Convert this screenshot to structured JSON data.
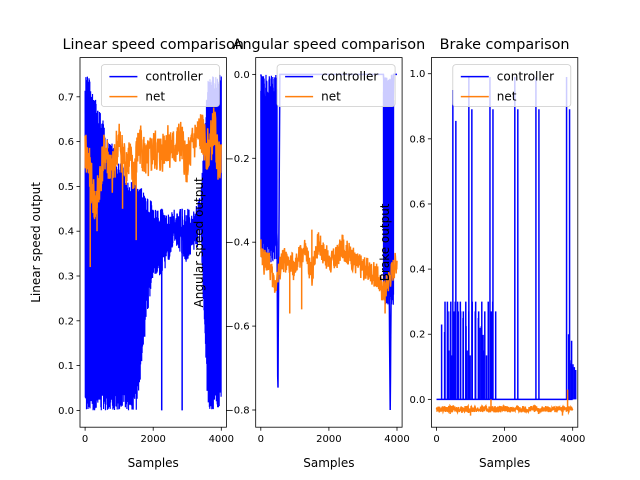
{
  "chart_data": [
    {
      "type": "line",
      "title": "Linear speed comparison",
      "xlabel": "Samples",
      "ylabel": "Linear speed output",
      "xlim": [
        -150,
        4150
      ],
      "ylim": [
        -0.0375,
        0.7875
      ],
      "xticks": [
        0,
        2000,
        4000
      ],
      "yticks": [
        0.0,
        0.1,
        0.2,
        0.3,
        0.4,
        0.5,
        0.6,
        0.7
      ],
      "ytick_labels": [
        "0.0",
        "0.1",
        "0.2",
        "0.3",
        "0.4",
        "0.5",
        "0.6",
        "0.7"
      ],
      "legend": "top-right",
      "series": [
        {
          "name": "controller",
          "color": "#0000ff",
          "x": [
            0,
            100,
            200,
            300,
            400,
            500,
            600,
            700,
            800,
            900,
            1000,
            1100,
            1200,
            1300,
            1400,
            1500,
            1600,
            1700,
            1800,
            1900,
            2000,
            2200,
            2400,
            2600,
            2800,
            3000,
            3200,
            3400,
            3600,
            3700,
            3800,
            3900,
            4000
          ],
          "low": [
            0.0,
            0.0,
            0.0,
            0.0,
            0.0,
            0.0,
            0.0,
            0.0,
            0.0,
            0.0,
            0.0,
            0.0,
            0.0,
            0.0,
            0.0,
            0.0,
            0.05,
            0.12,
            0.2,
            0.25,
            0.3,
            0.3,
            0.32,
            0.35,
            0.35,
            0.32,
            0.35,
            0.38,
            0.0,
            0.0,
            0.0,
            0.0,
            0.0
          ],
          "high": [
            0.75,
            0.75,
            0.72,
            0.7,
            0.68,
            0.66,
            0.62,
            0.6,
            0.6,
            0.58,
            0.56,
            0.55,
            0.52,
            0.52,
            0.52,
            0.5,
            0.5,
            0.5,
            0.48,
            0.48,
            0.45,
            0.45,
            0.45,
            0.45,
            0.45,
            0.45,
            0.45,
            0.48,
            0.75,
            0.75,
            0.75,
            0.75,
            0.75
          ],
          "spikes": [
            {
              "x": 2250,
              "y": 0.0
            },
            {
              "x": 2850,
              "y": 0.0
            }
          ]
        },
        {
          "name": "net",
          "color": "#ff7f0e",
          "x": [
            0,
            100,
            200,
            300,
            400,
            500,
            600,
            700,
            800,
            900,
            1000,
            1100,
            1200,
            1300,
            1400,
            1500,
            1600,
            1700,
            1800,
            1900,
            2000,
            2200,
            2400,
            2600,
            2800,
            3000,
            3200,
            3400,
            3600,
            3700,
            3800,
            3900,
            4000
          ],
          "y": [
            0.58,
            0.55,
            0.5,
            0.45,
            0.5,
            0.55,
            0.58,
            0.55,
            0.52,
            0.58,
            0.6,
            0.57,
            0.55,
            0.57,
            0.52,
            0.56,
            0.6,
            0.58,
            0.55,
            0.56,
            0.58,
            0.57,
            0.6,
            0.58,
            0.6,
            0.55,
            0.6,
            0.62,
            0.58,
            0.6,
            0.64,
            0.55,
            0.58
          ],
          "amp": 0.05,
          "dips": [
            {
              "x": 150,
              "y": 0.32
            },
            {
              "x": 350,
              "y": 0.4
            },
            {
              "x": 1500,
              "y": 0.38
            },
            {
              "x": 1100,
              "y": 0.45
            }
          ]
        }
      ]
    },
    {
      "type": "line",
      "title": "Angular speed comparison",
      "xlabel": "Samples",
      "ylabel": "Angular speed output",
      "xlim": [
        -150,
        4150
      ],
      "ylim": [
        -0.841,
        0.04
      ],
      "xticks": [
        0,
        2000,
        4000
      ],
      "yticks": [
        0.0,
        -0.2,
        -0.4,
        -0.6,
        -0.8
      ],
      "ytick_labels": [
        "0.0",
        "−0.2",
        "−0.4",
        "−0.6",
        "−0.8"
      ],
      "legend": "top-right",
      "series": [
        {
          "name": "controller",
          "color": "#0000ff",
          "x": [
            0,
            100,
            200,
            300,
            400,
            480,
            500,
            560,
            700,
            1000,
            2000,
            3000,
            3600,
            3650,
            3700,
            3750,
            3800,
            3850,
            3900,
            3950,
            4000
          ],
          "y": [
            0.0,
            -0.05,
            -0.1,
            -0.15,
            -0.25,
            -0.4,
            -0.8,
            0.0,
            0.0,
            0.0,
            0.0,
            0.0,
            0.0,
            -0.05,
            -0.15,
            -0.3,
            -0.8,
            -0.3,
            0.0,
            0.0,
            0.0
          ],
          "band": [
            {
              "from": 0,
              "to": 480,
              "low": -0.45,
              "high": 0.0
            },
            {
              "from": 3600,
              "to": 3900,
              "low": -0.55,
              "high": 0.0
            }
          ]
        },
        {
          "name": "net",
          "color": "#ff7f0e",
          "x": [
            0,
            100,
            200,
            300,
            400,
            500,
            600,
            700,
            800,
            900,
            1000,
            1100,
            1200,
            1300,
            1400,
            1500,
            1600,
            1700,
            1800,
            1900,
            2000,
            2200,
            2400,
            2600,
            2800,
            3000,
            3200,
            3400,
            3600,
            3700,
            3800,
            3900,
            4000
          ],
          "y": [
            -0.42,
            -0.45,
            -0.44,
            -0.47,
            -0.5,
            -0.48,
            -0.45,
            -0.44,
            -0.46,
            -0.45,
            -0.47,
            -0.44,
            -0.43,
            -0.42,
            -0.45,
            -0.48,
            -0.42,
            -0.4,
            -0.42,
            -0.43,
            -0.45,
            -0.44,
            -0.41,
            -0.43,
            -0.45,
            -0.46,
            -0.47,
            -0.48,
            -0.52,
            -0.5,
            -0.48,
            -0.46,
            -0.44
          ],
          "amp": 0.03,
          "dips": [
            {
              "x": 850,
              "y": -0.57
            },
            {
              "x": 1200,
              "y": -0.56
            },
            {
              "x": 1500,
              "y": -0.37
            },
            {
              "x": 3650,
              "y": -0.57
            }
          ]
        }
      ]
    },
    {
      "type": "line",
      "title": "Brake comparison",
      "xlabel": "Samples",
      "ylabel": "Brake output",
      "xlim": [
        -150,
        4150
      ],
      "ylim": [
        -0.0855,
        1.0495
      ],
      "xticks": [
        0,
        2000,
        4000
      ],
      "yticks": [
        0.0,
        0.2,
        0.4,
        0.6,
        0.8,
        1.0
      ],
      "ytick_labels": [
        "0.0",
        "0.2",
        "0.4",
        "0.6",
        "0.8",
        "1.0"
      ],
      "legend": "top-right",
      "series": [
        {
          "name": "controller",
          "color": "#0000ff",
          "baseline": 0.0,
          "pulses": [
            {
              "x": 150,
              "y": 0.23
            },
            {
              "x": 250,
              "y": 0.3
            },
            {
              "x": 320,
              "y": 0.3
            },
            {
              "x": 360,
              "y": 0.15
            },
            {
              "x": 420,
              "y": 0.3
            },
            {
              "x": 480,
              "y": 0.95
            },
            {
              "x": 550,
              "y": 0.3
            },
            {
              "x": 620,
              "y": 0.3
            },
            {
              "x": 700,
              "y": 0.3
            },
            {
              "x": 780,
              "y": 0.25
            },
            {
              "x": 860,
              "y": 0.3
            },
            {
              "x": 900,
              "y": 0.15
            },
            {
              "x": 950,
              "y": 0.99
            },
            {
              "x": 1050,
              "y": 0.3
            },
            {
              "x": 1150,
              "y": 0.3
            },
            {
              "x": 1230,
              "y": 0.25
            },
            {
              "x": 1280,
              "y": 0.22
            },
            {
              "x": 1330,
              "y": 0.3
            },
            {
              "x": 1380,
              "y": 0.15
            },
            {
              "x": 1520,
              "y": 0.3
            },
            {
              "x": 1570,
              "y": 0.99
            },
            {
              "x": 1650,
              "y": 0.3
            },
            {
              "x": 2300,
              "y": 0.99
            },
            {
              "x": 2920,
              "y": 0.99
            },
            {
              "x": 3820,
              "y": 0.99
            },
            {
              "x": 3880,
              "y": 0.2
            },
            {
              "x": 3920,
              "y": 0.12
            },
            {
              "x": 3960,
              "y": 0.11
            },
            {
              "x": 4000,
              "y": 0.1
            }
          ]
        },
        {
          "name": "net",
          "color": "#ff7f0e",
          "baseline": -0.03,
          "amp": 0.01,
          "dips": [
            {
              "x": 400,
              "y": -0.045
            },
            {
              "x": 1000,
              "y": -0.05
            },
            {
              "x": 1600,
              "y": 0.0
            },
            {
              "x": 2500,
              "y": -0.04
            },
            {
              "x": 3000,
              "y": -0.045
            },
            {
              "x": 3850,
              "y": 0.03
            },
            {
              "x": 3700,
              "y": -0.05
            }
          ]
        }
      ]
    }
  ]
}
